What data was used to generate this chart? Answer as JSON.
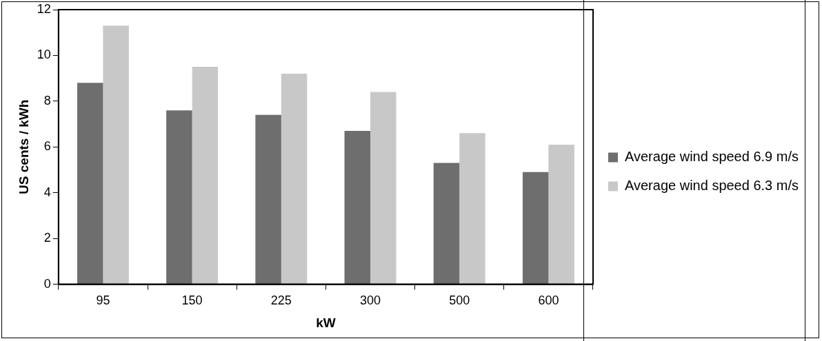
{
  "chart_data": {
    "type": "bar",
    "xlabel": "kW",
    "ylabel": "US cents / kWh",
    "categories": [
      "95",
      "150",
      "225",
      "300",
      "500",
      "600"
    ],
    "series": [
      {
        "name": "Average wind speed 6.9 m/s",
        "color": "#6e6e6e",
        "values": [
          8.8,
          7.6,
          7.4,
          6.7,
          5.3,
          4.9
        ]
      },
      {
        "name": "Average wind speed 6.3 m/s",
        "color": "#c8c8c8",
        "values": [
          11.3,
          9.5,
          9.2,
          8.4,
          6.6,
          6.1
        ]
      }
    ],
    "ylim": [
      0,
      12
    ],
    "yticks": [
      0,
      2,
      4,
      6,
      8,
      10,
      12
    ],
    "grid": false,
    "legend": "right"
  }
}
